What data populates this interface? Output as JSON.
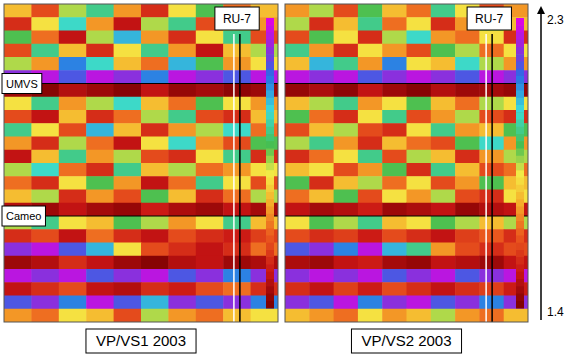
{
  "chart_data": {
    "type": "heatmap",
    "xlim": [
      0,
      10
    ],
    "ylim": [
      0,
      24
    ],
    "tick_labels": false,
    "colorbar": {
      "range": [
        1.4,
        2.3
      ],
      "ticks": [
        2.3,
        1.4
      ]
    },
    "horizons": [
      {
        "label": "UMVS",
        "y": 6.0
      },
      {
        "label": "Cameo",
        "y": 16.0
      }
    ],
    "panels": [
      {
        "title": "VP/VS1 2003",
        "well": {
          "label": "RU-7",
          "x": 8.5
        },
        "cells": [
          [
            1.75,
            1.6,
            1.85,
            1.95,
            1.7,
            1.55,
            1.8,
            1.9,
            1.65,
            1.75
          ],
          [
            1.55,
            1.8,
            2.0,
            1.7,
            1.5,
            1.85,
            1.95,
            1.6,
            1.8,
            1.7
          ],
          [
            1.9,
            1.65,
            1.5,
            1.85,
            2.05,
            1.7,
            1.55,
            1.8,
            1.95,
            1.6
          ],
          [
            1.6,
            1.95,
            1.75,
            1.55,
            1.8,
            1.95,
            1.7,
            1.5,
            1.75,
            1.85
          ],
          [
            1.85,
            1.7,
            2.1,
            2.0,
            1.75,
            1.65,
            2.05,
            1.9,
            1.7,
            1.8
          ],
          [
            2.2,
            2.25,
            2.15,
            2.25,
            2.2,
            2.1,
            2.25,
            2.2,
            2.15,
            2.25
          ],
          [
            1.45,
            1.42,
            1.48,
            1.45,
            1.42,
            1.5,
            1.44,
            1.46,
            1.43,
            1.45
          ],
          [
            1.8,
            1.95,
            1.7,
            1.85,
            2.0,
            1.75,
            1.65,
            1.9,
            1.8,
            1.7
          ],
          [
            1.6,
            1.5,
            1.75,
            1.55,
            1.65,
            1.85,
            1.95,
            1.6,
            1.55,
            1.75
          ],
          [
            1.95,
            1.8,
            1.6,
            2.05,
            1.75,
            1.55,
            1.7,
            1.85,
            2.0,
            1.65
          ],
          [
            1.7,
            1.55,
            1.85,
            1.65,
            1.5,
            1.8,
            2.0,
            1.7,
            1.6,
            1.9
          ],
          [
            1.5,
            1.75,
            1.95,
            1.7,
            1.85,
            1.6,
            1.55,
            1.8,
            1.95,
            1.55
          ],
          [
            1.85,
            2.0,
            1.65,
            1.55,
            1.95,
            1.75,
            1.85,
            1.65,
            1.7,
            1.8
          ],
          [
            1.65,
            1.55,
            1.8,
            1.9,
            1.7,
            1.5,
            1.65,
            1.95,
            1.8,
            1.6
          ],
          [
            1.75,
            1.85,
            1.55,
            1.7,
            1.6,
            1.9,
            1.75,
            1.55,
            1.65,
            1.85
          ],
          [
            1.48,
            1.45,
            1.5,
            1.46,
            1.44,
            1.52,
            1.47,
            1.45,
            1.5,
            1.46
          ],
          [
            1.85,
            1.95,
            1.8,
            1.75,
            1.9,
            1.85,
            1.7,
            1.8,
            1.95,
            1.75
          ],
          [
            1.55,
            1.6,
            1.5,
            1.65,
            1.55,
            1.5,
            1.6,
            1.55,
            1.52,
            1.58
          ],
          [
            2.2,
            2.25,
            2.15,
            2.05,
            1.8,
            1.6,
            1.55,
            1.5,
            1.55,
            1.65
          ],
          [
            1.45,
            1.48,
            1.55,
            1.5,
            1.45,
            1.42,
            1.48,
            1.5,
            1.45,
            1.47
          ],
          [
            2.25,
            2.2,
            2.25,
            2.15,
            2.2,
            2.25,
            2.15,
            2.2,
            2.1,
            2.2
          ],
          [
            1.5,
            1.55,
            1.6,
            1.5,
            1.48,
            1.55,
            1.52,
            1.6,
            1.65,
            1.55
          ],
          [
            2.15,
            2.2,
            2.1,
            2.25,
            2.15,
            2.05,
            2.2,
            2.15,
            2.2,
            2.1
          ],
          [
            1.7,
            1.65,
            1.8,
            1.75,
            1.6,
            1.85,
            1.7,
            1.65,
            1.75,
            1.8
          ]
        ]
      },
      {
        "title": "VP/VS2 2003",
        "well": {
          "label": "RU-7",
          "x": 8.4
        },
        "cells": [
          [
            1.7,
            1.85,
            1.6,
            1.9,
            1.75,
            1.65,
            1.95,
            1.8,
            1.6,
            1.7
          ],
          [
            1.85,
            1.55,
            1.75,
            1.95,
            1.65,
            1.8,
            1.55,
            1.7,
            1.9,
            1.75
          ],
          [
            1.6,
            1.9,
            1.8,
            1.55,
            1.85,
            2.0,
            1.7,
            1.65,
            1.8,
            1.55
          ],
          [
            1.95,
            1.7,
            1.55,
            1.8,
            1.7,
            1.6,
            1.9,
            1.85,
            1.65,
            1.8
          ],
          [
            1.75,
            2.05,
            1.95,
            1.7,
            2.1,
            1.8,
            1.75,
            2.0,
            1.85,
            1.7
          ],
          [
            2.25,
            2.2,
            2.25,
            2.15,
            2.2,
            2.25,
            2.2,
            2.15,
            2.25,
            2.2
          ],
          [
            1.44,
            1.47,
            1.43,
            1.5,
            1.45,
            1.42,
            1.48,
            1.45,
            1.46,
            1.44
          ],
          [
            1.75,
            1.85,
            1.95,
            1.7,
            1.8,
            1.9,
            1.75,
            1.65,
            1.85,
            1.8
          ],
          [
            1.9,
            1.65,
            1.55,
            1.8,
            1.95,
            1.6,
            1.7,
            1.85,
            1.6,
            1.55
          ],
          [
            1.6,
            1.75,
            1.85,
            1.6,
            1.55,
            1.8,
            1.95,
            1.7,
            1.75,
            1.9
          ],
          [
            1.85,
            1.95,
            1.7,
            1.55,
            1.75,
            1.65,
            1.6,
            1.9,
            2.0,
            1.7
          ],
          [
            1.55,
            1.65,
            1.8,
            1.95,
            1.6,
            1.85,
            1.75,
            1.55,
            1.7,
            1.85
          ],
          [
            1.75,
            1.8,
            1.6,
            1.7,
            1.9,
            1.55,
            1.95,
            1.75,
            1.6,
            1.65
          ],
          [
            1.9,
            1.55,
            1.75,
            1.85,
            1.65,
            1.8,
            1.6,
            1.7,
            1.9,
            1.75
          ],
          [
            1.65,
            1.75,
            1.9,
            1.6,
            1.8,
            1.7,
            1.85,
            1.6,
            1.55,
            1.8
          ],
          [
            1.5,
            1.46,
            1.48,
            1.52,
            1.45,
            1.47,
            1.5,
            1.44,
            1.48,
            1.5
          ],
          [
            1.8,
            1.9,
            1.85,
            1.95,
            1.75,
            1.8,
            1.9,
            1.85,
            1.75,
            1.85
          ],
          [
            1.6,
            1.55,
            1.58,
            1.52,
            1.6,
            1.55,
            1.5,
            1.58,
            1.62,
            1.55
          ],
          [
            2.15,
            2.2,
            2.1,
            2.25,
            2.05,
            1.95,
            1.7,
            1.6,
            1.55,
            1.6
          ],
          [
            1.47,
            1.45,
            1.5,
            1.52,
            1.46,
            1.44,
            1.5,
            1.48,
            1.45,
            1.5
          ],
          [
            2.2,
            2.25,
            2.2,
            2.25,
            2.15,
            2.2,
            2.25,
            2.15,
            2.2,
            2.25
          ],
          [
            1.55,
            1.5,
            1.58,
            1.52,
            1.6,
            1.55,
            1.5,
            1.55,
            1.58,
            1.52
          ],
          [
            2.2,
            2.15,
            2.25,
            2.1,
            2.2,
            2.25,
            2.15,
            2.2,
            2.1,
            2.2
          ],
          [
            1.75,
            1.7,
            1.65,
            1.8,
            1.7,
            1.75,
            1.85,
            1.7,
            1.65,
            1.75
          ]
        ]
      }
    ]
  }
}
